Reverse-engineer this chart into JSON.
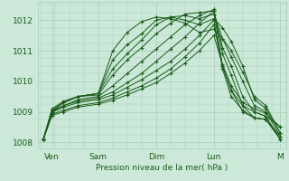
{
  "bg_color": "#cce8d8",
  "grid_color": "#aaccbb",
  "line_color": "#1a5c1a",
  "marker_color": "#1a5c1a",
  "xlabel_text": "Pression niveau de la mer( hPa )",
  "ylim": [
    1007.8,
    1012.6
  ],
  "yticks": [
    1008,
    1009,
    1010,
    1011,
    1012
  ],
  "xlim": [
    -0.05,
    4.25
  ],
  "xtick_labels": [
    "Ven",
    "Sam",
    "Dim",
    "Lun",
    "M"
  ],
  "xtick_positions": [
    0.2,
    1.0,
    2.0,
    3.0,
    4.15
  ],
  "series": [
    {
      "x": [
        0.05,
        0.2,
        0.4,
        0.65,
        1.0,
        1.25,
        1.5,
        1.75,
        2.0,
        2.25,
        2.5,
        2.75,
        3.0,
        3.15,
        3.3,
        3.5,
        3.7,
        3.9,
        4.15
      ],
      "y": [
        1008.1,
        1009.0,
        1009.3,
        1009.5,
        1009.6,
        1011.0,
        1011.6,
        1011.95,
        1012.1,
        1012.05,
        1011.9,
        1011.6,
        1011.7,
        1011.4,
        1011.0,
        1010.3,
        1009.5,
        1009.2,
        1008.3
      ]
    },
    {
      "x": [
        0.05,
        0.2,
        0.4,
        0.65,
        1.0,
        1.25,
        1.5,
        1.75,
        2.0,
        2.25,
        2.5,
        2.75,
        3.0,
        3.15,
        3.3,
        3.5,
        3.7,
        3.9,
        4.15
      ],
      "y": [
        1008.1,
        1009.05,
        1009.3,
        1009.5,
        1009.6,
        1010.7,
        1011.2,
        1011.55,
        1012.0,
        1012.1,
        1012.0,
        1011.85,
        1012.05,
        1011.75,
        1011.3,
        1010.5,
        1009.4,
        1009.1,
        1008.3
      ]
    },
    {
      "x": [
        0.05,
        0.2,
        0.4,
        0.65,
        1.0,
        1.25,
        1.5,
        1.75,
        2.0,
        2.25,
        2.5,
        2.75,
        3.0,
        3.15,
        3.3,
        3.5,
        3.7,
        3.9,
        4.15
      ],
      "y": [
        1008.1,
        1009.1,
        1009.35,
        1009.5,
        1009.6,
        1010.4,
        1010.9,
        1011.35,
        1011.85,
        1012.1,
        1012.15,
        1012.05,
        1012.2,
        1011.4,
        1010.8,
        1010.0,
        1009.2,
        1009.0,
        1008.2
      ]
    },
    {
      "x": [
        0.05,
        0.2,
        0.4,
        0.65,
        1.0,
        1.25,
        1.5,
        1.75,
        2.0,
        2.25,
        2.5,
        2.75,
        3.0,
        3.15,
        3.3,
        3.5,
        3.7,
        3.9,
        4.15
      ],
      "y": [
        1008.1,
        1009.05,
        1009.3,
        1009.5,
        1009.55,
        1010.2,
        1010.7,
        1011.1,
        1011.55,
        1011.9,
        1012.2,
        1012.25,
        1012.3,
        1011.1,
        1010.5,
        1009.5,
        1009.0,
        1008.85,
        1008.1
      ]
    },
    {
      "x": [
        0.05,
        0.2,
        0.4,
        0.65,
        1.0,
        1.25,
        1.5,
        1.75,
        2.0,
        2.25,
        2.5,
        2.75,
        3.0,
        3.15,
        3.3,
        3.5,
        3.7,
        3.9,
        4.15
      ],
      "y": [
        1008.1,
        1009.0,
        1009.2,
        1009.4,
        1009.5,
        1009.85,
        1010.25,
        1010.65,
        1011.05,
        1011.45,
        1011.85,
        1012.15,
        1012.35,
        1010.9,
        1010.2,
        1009.2,
        1008.8,
        1008.75,
        1008.1
      ]
    },
    {
      "x": [
        0.05,
        0.2,
        0.4,
        0.65,
        1.0,
        1.25,
        1.5,
        1.75,
        2.0,
        2.25,
        2.5,
        2.75,
        3.0,
        3.15,
        3.3,
        3.5,
        3.7,
        3.9,
        4.15
      ],
      "y": [
        1008.1,
        1009.0,
        1009.2,
        1009.35,
        1009.45,
        1009.65,
        1009.95,
        1010.25,
        1010.65,
        1011.05,
        1011.45,
        1011.9,
        1012.3,
        1010.5,
        1009.7,
        1009.0,
        1008.8,
        1008.75,
        1008.1
      ]
    },
    {
      "x": [
        0.05,
        0.2,
        0.4,
        0.65,
        1.0,
        1.25,
        1.5,
        1.75,
        2.0,
        2.25,
        2.5,
        2.75,
        3.0,
        3.15,
        3.3,
        3.5,
        3.7,
        3.9,
        4.15
      ],
      "y": [
        1008.1,
        1008.98,
        1009.15,
        1009.3,
        1009.4,
        1009.55,
        1009.8,
        1010.05,
        1010.35,
        1010.65,
        1011.05,
        1011.5,
        1012.0,
        1010.4,
        1009.5,
        1009.05,
        1008.8,
        1008.75,
        1008.2
      ]
    },
    {
      "x": [
        0.05,
        0.2,
        0.4,
        0.65,
        1.0,
        1.25,
        1.5,
        1.75,
        2.0,
        2.25,
        2.5,
        2.75,
        3.0,
        3.15,
        3.3,
        3.5,
        3.7,
        3.9,
        4.15
      ],
      "y": [
        1008.1,
        1008.92,
        1009.05,
        1009.2,
        1009.3,
        1009.45,
        1009.65,
        1009.85,
        1010.1,
        1010.4,
        1010.8,
        1011.25,
        1011.85,
        1010.5,
        1009.7,
        1009.2,
        1009.0,
        1008.85,
        1008.5
      ]
    },
    {
      "x": [
        0.05,
        0.2,
        0.4,
        0.65,
        1.0,
        1.25,
        1.5,
        1.75,
        2.0,
        2.25,
        2.5,
        2.75,
        3.0,
        3.15,
        3.3,
        3.5,
        3.7,
        3.9,
        4.15
      ],
      "y": [
        1008.1,
        1008.88,
        1009.0,
        1009.15,
        1009.25,
        1009.38,
        1009.55,
        1009.75,
        1009.95,
        1010.25,
        1010.6,
        1011.0,
        1011.5,
        1010.55,
        1009.85,
        1009.3,
        1009.1,
        1008.95,
        1008.5
      ]
    }
  ]
}
